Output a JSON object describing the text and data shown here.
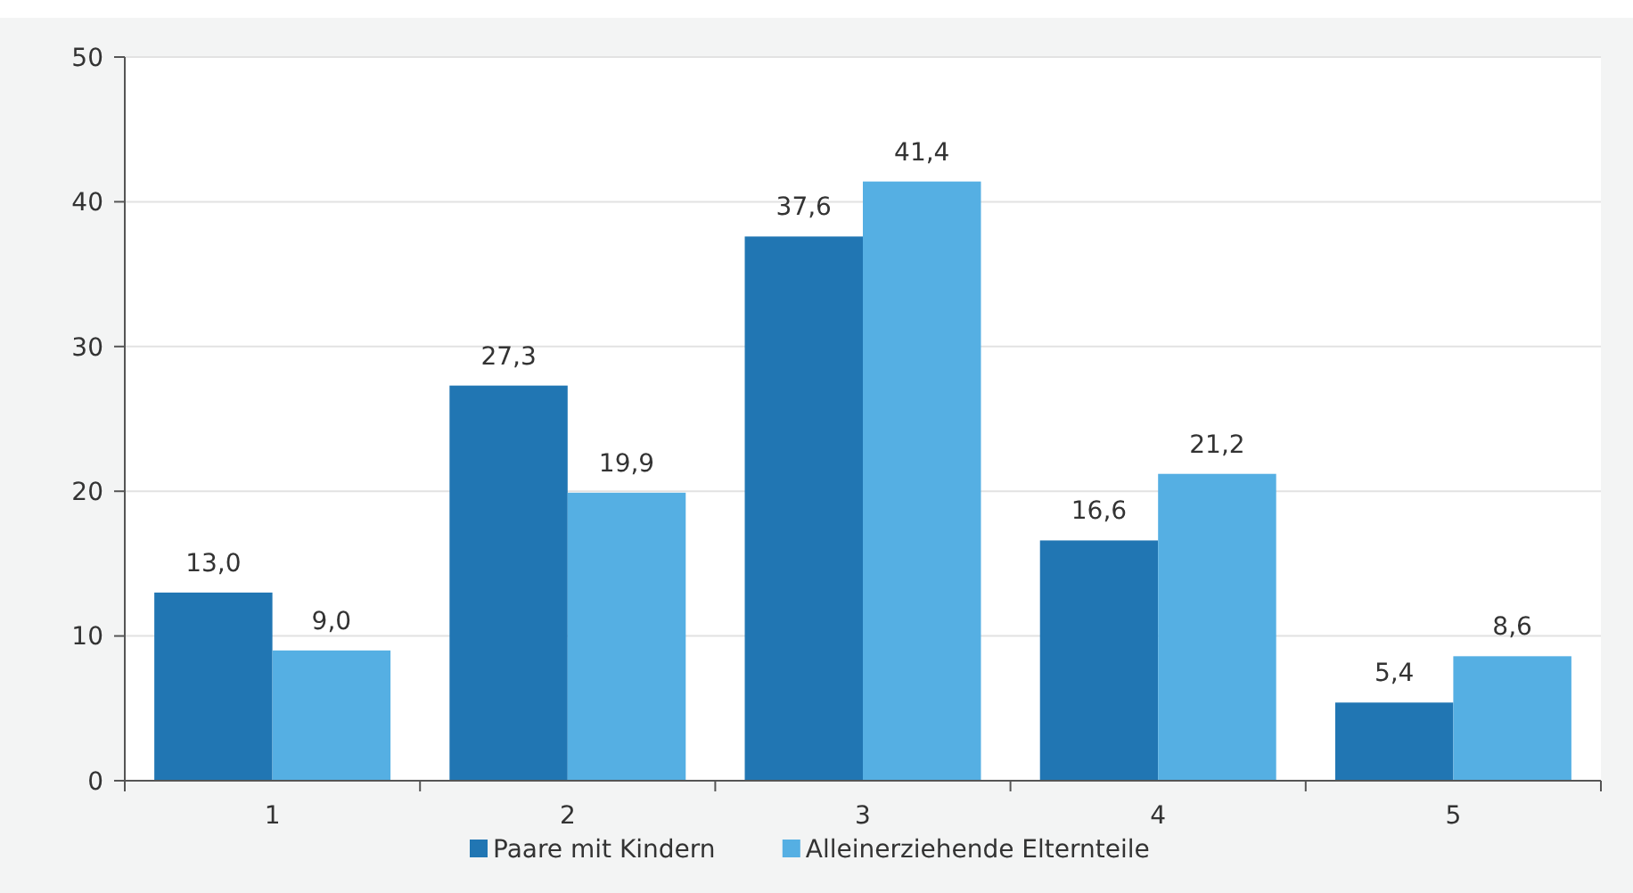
{
  "chart_data": {
    "type": "bar",
    "categories": [
      "1",
      "2",
      "3",
      "4",
      "5"
    ],
    "series": [
      {
        "name": "Paare mit Kindern",
        "color": "#2176b3",
        "values": [
          13.0,
          27.3,
          37.6,
          16.6,
          5.4
        ],
        "value_labels": [
          "13,0",
          "27,3",
          "37,6",
          "16,6",
          "5,4"
        ]
      },
      {
        "name": "Alleinerziehende Elternteile",
        "color": "#55afe3",
        "values": [
          9.0,
          19.9,
          41.4,
          21.2,
          8.6
        ],
        "value_labels": [
          "9,0",
          "19,9",
          "41,4",
          "21,2",
          "8,6"
        ]
      }
    ],
    "ylim": [
      0,
      50
    ],
    "yticks": [
      0,
      10,
      20,
      30,
      40,
      50
    ],
    "grid": "y",
    "legend": "bottom"
  }
}
